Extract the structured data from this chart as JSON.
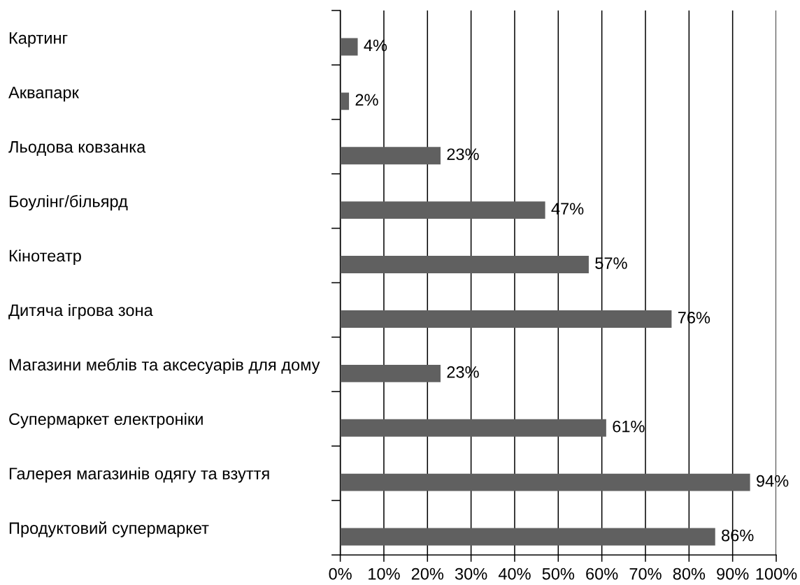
{
  "chart_data": {
    "type": "bar",
    "orientation": "horizontal",
    "categories": [
      "Картинг",
      "Аквапарк",
      "Льодова ковзанка",
      "Боулінг/більярд",
      "Кінотеатр",
      "Дитяча ігрова зона",
      "Магазини меблів та аксесуарів для дому",
      "Супермаркет електроніки",
      "Галерея магазинів одягу та взуття",
      "Продуктовий супермаркет"
    ],
    "values": [
      4,
      2,
      23,
      47,
      57,
      76,
      23,
      61,
      94,
      86
    ],
    "value_labels": [
      "4%",
      "2%",
      "23%",
      "47%",
      "57%",
      "76%",
      "23%",
      "61%",
      "94%",
      "86%"
    ],
    "color": "#606060",
    "xlim": [
      0,
      100
    ],
    "xticks": [
      {
        "value": 0,
        "label": "0%"
      },
      {
        "value": 10,
        "label": "10%"
      },
      {
        "value": 20,
        "label": "20%"
      },
      {
        "value": 30,
        "label": "30%"
      },
      {
        "value": 40,
        "label": "40%"
      },
      {
        "value": 50,
        "label": "50%"
      },
      {
        "value": 60,
        "label": "60%"
      },
      {
        "value": 70,
        "label": "70%"
      },
      {
        "value": 80,
        "label": "80%"
      },
      {
        "value": 90,
        "label": "90%"
      },
      {
        "value": 100,
        "label": "100%"
      }
    ],
    "grid": "x"
  }
}
